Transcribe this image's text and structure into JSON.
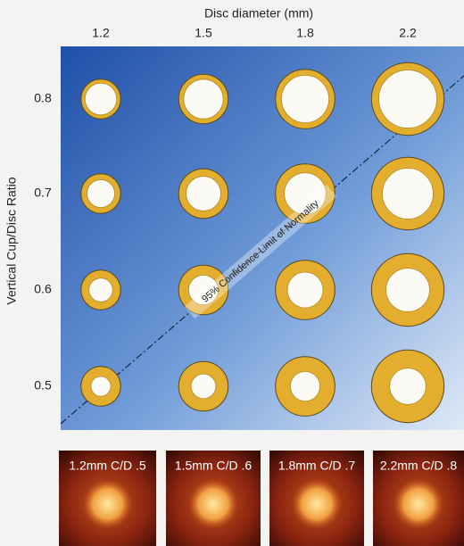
{
  "chart_data": {
    "type": "discgrid",
    "x_label": "Disc diameter (mm)",
    "y_label": "Vertical Cup/Disc Ratio",
    "x": [
      1.2,
      1.5,
      1.8,
      2.2
    ],
    "y": [
      0.8,
      0.7,
      0.6,
      0.5
    ],
    "disc_color": "#e3ad2e",
    "cup_color": "#fbfaf4",
    "annotation": "95% Confidence Limit of Normality",
    "photos": [
      "1.2mm C/D .5",
      "1.5mm C/D .6",
      "1.8mm C/D .7",
      "2.2mm C/D .8"
    ]
  }
}
